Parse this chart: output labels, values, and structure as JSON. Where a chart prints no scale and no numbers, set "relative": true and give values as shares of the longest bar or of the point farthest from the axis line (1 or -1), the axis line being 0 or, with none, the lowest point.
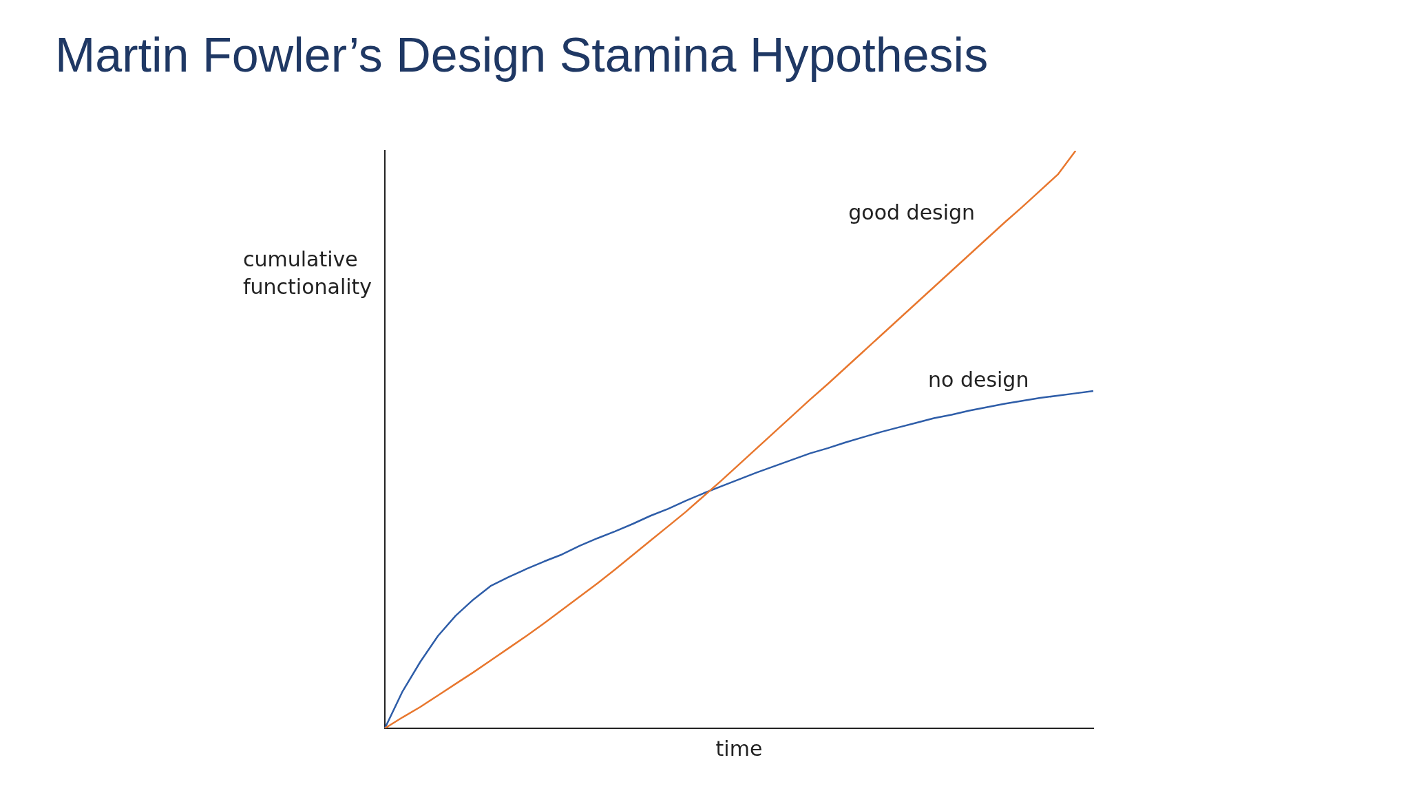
{
  "chart_data": {
    "type": "line",
    "title": "Martin Fowler’s Design Stamina Hypothesis",
    "xlabel": "time",
    "ylabel": "cumulative functionality",
    "relative": true,
    "marker": "none",
    "categories": [
      null,
      null,
      null,
      null,
      null,
      null,
      null,
      null,
      null,
      null,
      null,
      null,
      null,
      null,
      null,
      null,
      null,
      null,
      null,
      null,
      null,
      null,
      null,
      null,
      null,
      null,
      null,
      null,
      null,
      null,
      null,
      null,
      null,
      null,
      null,
      null,
      null,
      null,
      null,
      null,
      null
    ],
    "series": [
      {
        "name": "good design",
        "color": "#e8772e",
        "values": [
          0,
          0.019,
          0.037,
          0.057,
          0.077,
          0.097,
          0.118,
          0.139,
          0.16,
          0.182,
          0.205,
          0.228,
          0.251,
          0.275,
          0.3,
          0.325,
          0.35,
          0.375,
          0.402,
          0.429,
          0.457,
          0.485,
          0.513,
          0.541,
          0.569,
          0.596,
          0.624,
          0.652,
          0.68,
          0.708,
          0.736,
          0.764,
          0.792,
          0.82,
          0.848,
          0.876,
          0.903,
          0.931,
          0.959,
          1,
          null
        ]
      },
      {
        "name": "no design",
        "color": "#2e5da8",
        "values": [
          0,
          0.064,
          0.115,
          0.16,
          0.195,
          0.223,
          0.247,
          0.262,
          0.276,
          0.289,
          0.301,
          0.316,
          0.329,
          0.341,
          0.354,
          0.368,
          0.38,
          0.394,
          0.407,
          0.419,
          0.431,
          0.443,
          0.454,
          0.465,
          0.476,
          0.485,
          0.495,
          0.504,
          0.513,
          0.521,
          0.529,
          0.537,
          0.543,
          0.55,
          0.556,
          0.562,
          0.567,
          0.572,
          0.576,
          0.58,
          0.584
        ]
      }
    ]
  }
}
